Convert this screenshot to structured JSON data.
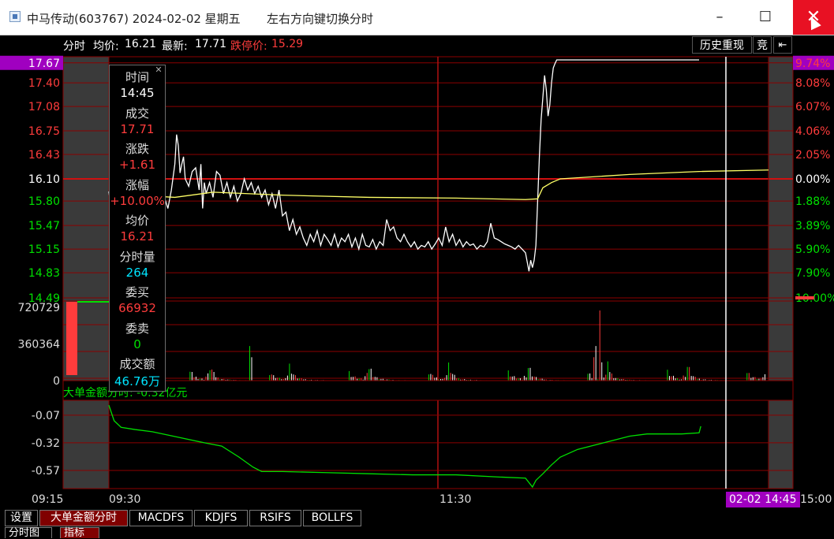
{
  "window": {
    "title": "中马传动(603767) 2024-02-02 星期五",
    "hint": "左右方向键切换分时",
    "minimize_glyph": "–",
    "maximize_glyph": "☐",
    "close_glyph": "✕"
  },
  "info_bar": {
    "mode": "分时",
    "avg_label": "均价:",
    "avg_value": "16.21",
    "latest_label": "最新:",
    "latest_value": "17.71",
    "limit_label": "跌停价:",
    "limit_value": "15.29",
    "history_button": "历史重现",
    "auction_button": "竞",
    "back_glyph": "⇤"
  },
  "tooltip": {
    "close_glyph": "✕",
    "rows": [
      {
        "label": "时间",
        "value": "14:45",
        "color": "#ffffff"
      },
      {
        "label": "成交",
        "value": "17.71",
        "color": "#ff3c3c"
      },
      {
        "label": "涨跌",
        "value": "+1.61",
        "color": "#ff3c3c"
      },
      {
        "label": "涨幅",
        "value": "+10.00%",
        "color": "#ff3c3c"
      },
      {
        "label": "均价",
        "value": "16.21",
        "color": "#ff3c3c"
      },
      {
        "label": "分时量",
        "value": "264",
        "color": "#00e5ff"
      },
      {
        "label": "委买",
        "value": "66932",
        "color": "#ff3c3c"
      },
      {
        "label": "委卖",
        "value": "0",
        "color": "#00e000"
      },
      {
        "label": "成交额",
        "value": "46.76万",
        "color": "#00e5ff"
      }
    ]
  },
  "chart_data": [
    {
      "type": "line",
      "name": "price",
      "y_ticks": [
        "17.67",
        "17.40",
        "17.08",
        "16.75",
        "16.43",
        "16.10",
        "15.80",
        "15.47",
        "15.15",
        "14.83",
        "14.49"
      ],
      "y_ticks_values": [
        17.67,
        17.4,
        17.08,
        16.75,
        16.43,
        16.1,
        15.8,
        15.47,
        15.15,
        14.83,
        14.49
      ],
      "pct_ticks": [
        "9.74%",
        "8.08%",
        "6.07%",
        "4.06%",
        "2.05%",
        "0.00%",
        "1.88%",
        "3.89%",
        "5.90%",
        "7.90%",
        "10.00%"
      ],
      "ylim": [
        14.49,
        17.71
      ],
      "prev_close": 16.1,
      "x_ticks": [
        "09:15",
        "09:30",
        "11:30",
        "02-02 14:45",
        "15:00"
      ],
      "series": [
        {
          "name": "price",
          "color": "#ffffff",
          "points": [
            [
              0,
              15.93
            ],
            [
              4,
              15.55
            ],
            [
              8,
              15.4
            ],
            [
              12,
              15.3
            ],
            [
              16,
              15.45
            ],
            [
              20,
              15.2
            ],
            [
              24,
              15.38
            ],
            [
              28,
              15.6
            ],
            [
              32,
              15.28
            ],
            [
              36,
              15.65
            ],
            [
              40,
              15.5
            ],
            [
              44,
              15.62
            ],
            [
              48,
              15.55
            ],
            [
              52,
              15.78
            ],
            [
              56,
              15.7
            ],
            [
              60,
              15.9
            ],
            [
              64,
              15.85
            ],
            [
              68,
              15.7
            ],
            [
              72,
              15.95
            ],
            [
              76,
              16.3
            ],
            [
              78,
              16.7
            ],
            [
              80,
              16.55
            ],
            [
              82,
              16.18
            ],
            [
              84,
              16.3
            ],
            [
              86,
              16.4
            ],
            [
              88,
              16.1
            ],
            [
              92,
              16.0
            ],
            [
              96,
              16.2
            ],
            [
              100,
              16.25
            ],
            [
              104,
              15.95
            ],
            [
              106,
              16.3
            ],
            [
              108,
              15.7
            ],
            [
              110,
              16.05
            ],
            [
              112,
              15.9
            ],
            [
              116,
              16.05
            ],
            [
              120,
              15.85
            ],
            [
              124,
              16.2
            ],
            [
              128,
              16.15
            ],
            [
              132,
              15.9
            ],
            [
              136,
              16.05
            ],
            [
              140,
              15.85
            ],
            [
              144,
              16.0
            ],
            [
              148,
              15.8
            ],
            [
              152,
              15.9
            ],
            [
              156,
              16.1
            ],
            [
              160,
              15.95
            ],
            [
              164,
              16.05
            ],
            [
              168,
              15.9
            ],
            [
              172,
              16.0
            ],
            [
              176,
              15.85
            ],
            [
              180,
              15.95
            ],
            [
              184,
              15.75
            ],
            [
              188,
              15.9
            ],
            [
              192,
              15.7
            ],
            [
              196,
              15.95
            ],
            [
              200,
              15.6
            ],
            [
              204,
              15.65
            ],
            [
              208,
              15.4
            ],
            [
              212,
              15.55
            ],
            [
              216,
              15.35
            ],
            [
              220,
              15.45
            ],
            [
              224,
              15.3
            ],
            [
              228,
              15.2
            ],
            [
              232,
              15.35
            ],
            [
              236,
              15.25
            ],
            [
              240,
              15.4
            ],
            [
              244,
              15.2
            ],
            [
              248,
              15.35
            ],
            [
              252,
              15.28
            ],
            [
              256,
              15.2
            ],
            [
              260,
              15.35
            ],
            [
              264,
              15.18
            ],
            [
              268,
              15.3
            ],
            [
              272,
              15.25
            ],
            [
              276,
              15.35
            ],
            [
              280,
              15.18
            ],
            [
              284,
              15.3
            ],
            [
              288,
              15.15
            ],
            [
              292,
              15.35
            ],
            [
              296,
              15.2
            ],
            [
              300,
              15.18
            ],
            [
              304,
              15.28
            ],
            [
              308,
              15.15
            ],
            [
              312,
              15.25
            ],
            [
              316,
              15.2
            ],
            [
              320,
              15.55
            ],
            [
              324,
              15.4
            ],
            [
              328,
              15.45
            ],
            [
              332,
              15.3
            ],
            [
              336,
              15.25
            ],
            [
              340,
              15.35
            ],
            [
              344,
              15.25
            ],
            [
              348,
              15.18
            ],
            [
              352,
              15.25
            ],
            [
              356,
              15.15
            ],
            [
              360,
              15.2
            ],
            [
              364,
              15.18
            ],
            [
              368,
              15.25
            ],
            [
              372,
              15.15
            ],
            [
              376,
              15.22
            ],
            [
              380,
              15.3
            ],
            [
              384,
              15.2
            ],
            [
              388,
              15.45
            ],
            [
              392,
              15.25
            ],
            [
              396,
              15.35
            ],
            [
              400,
              15.2
            ],
            [
              404,
              15.28
            ],
            [
              408,
              15.18
            ],
            [
              412,
              15.25
            ],
            [
              416,
              15.2
            ],
            [
              420,
              15.22
            ],
            [
              424,
              15.15
            ],
            [
              428,
              15.2
            ],
            [
              432,
              15.18
            ],
            [
              436,
              15.25
            ],
            [
              440,
              15.5
            ],
            [
              444,
              15.3
            ],
            [
              448,
              15.28
            ],
            [
              452,
              15.25
            ],
            [
              456,
              15.22
            ],
            [
              460,
              15.2
            ],
            [
              464,
              15.18
            ],
            [
              468,
              15.15
            ],
            [
              472,
              15.2
            ],
            [
              476,
              15.15
            ],
            [
              480,
              15.1
            ],
            [
              484,
              14.85
            ],
            [
              486,
              15.0
            ],
            [
              488,
              14.9
            ],
            [
              490,
              15.0
            ],
            [
              492,
              15.2
            ],
            [
              494,
              15.8
            ],
            [
              496,
              16.4
            ],
            [
              498,
              16.9
            ],
            [
              500,
              17.2
            ],
            [
              502,
              17.5
            ],
            [
              504,
              17.3
            ],
            [
              506,
              16.95
            ],
            [
              508,
              17.1
            ],
            [
              510,
              17.4
            ],
            [
              512,
              17.6
            ],
            [
              514,
              17.66
            ],
            [
              516,
              17.71
            ],
            [
              560,
              17.71
            ],
            [
              600,
              17.71
            ],
            [
              640,
              17.71
            ],
            [
              680,
              17.71
            ]
          ]
        },
        {
          "name": "avg",
          "color": "#ffff66",
          "points": [
            [
              0,
              15.9
            ],
            [
              76,
              15.85
            ],
            [
              120,
              15.92
            ],
            [
              200,
              15.88
            ],
            [
              300,
              15.85
            ],
            [
              400,
              15.84
            ],
            [
              480,
              15.82
            ],
            [
              494,
              15.83
            ],
            [
              500,
              15.98
            ],
            [
              510,
              16.05
            ],
            [
              520,
              16.1
            ],
            [
              600,
              16.16
            ],
            [
              680,
              16.2
            ],
            [
              760,
              16.22
            ]
          ]
        }
      ],
      "x_domain": [
        0,
        760
      ]
    },
    {
      "type": "bar",
      "name": "volume",
      "y_ticks": [
        "720729",
        "360364",
        "0"
      ],
      "ylim": [
        0,
        720729
      ],
      "values_sample": [
        120000,
        90000,
        60000,
        50000,
        40000,
        30000,
        25000,
        20000,
        60000,
        80000,
        200000,
        150000,
        90000,
        60000,
        40000,
        30000,
        25000,
        20000,
        18000,
        15000,
        12000,
        10000,
        9000,
        8000,
        7000,
        6500,
        6000,
        5500,
        5000,
        4800,
        4500,
        4200,
        4000,
        3800,
        3600,
        3400,
        3200,
        3000,
        3000,
        3000
      ],
      "spike_values": [
        230000,
        340000,
        180000,
        690000,
        90000
      ]
    },
    {
      "type": "line",
      "name": "big_order_net",
      "label": "大单金额分时: -0.32亿元",
      "y_ticks": [
        "-0.07",
        "-0.32",
        "-0.57"
      ],
      "ylim": [
        -0.72,
        0.05
      ],
      "series": [
        {
          "name": "big_order_net",
          "color": "#00e000",
          "points": [
            [
              0,
              0.02
            ],
            [
              6,
              -0.12
            ],
            [
              14,
              -0.18
            ],
            [
              30,
              -0.2
            ],
            [
              50,
              -0.22
            ],
            [
              80,
              -0.27
            ],
            [
              110,
              -0.32
            ],
            [
              130,
              -0.35
            ],
            [
              150,
              -0.45
            ],
            [
              166,
              -0.54
            ],
            [
              176,
              -0.58
            ],
            [
              200,
              -0.58
            ],
            [
              250,
              -0.59
            ],
            [
              300,
              -0.6
            ],
            [
              350,
              -0.61
            ],
            [
              400,
              -0.61
            ],
            [
              450,
              -0.63
            ],
            [
              480,
              -0.64
            ],
            [
              488,
              -0.72
            ],
            [
              492,
              -0.66
            ],
            [
              500,
              -0.6
            ],
            [
              510,
              -0.52
            ],
            [
              520,
              -0.45
            ],
            [
              540,
              -0.38
            ],
            [
              560,
              -0.34
            ],
            [
              580,
              -0.3
            ],
            [
              600,
              -0.26
            ],
            [
              620,
              -0.24
            ],
            [
              640,
              -0.24
            ],
            [
              660,
              -0.24
            ],
            [
              680,
              -0.23
            ],
            [
              682,
              -0.17
            ]
          ]
        }
      ]
    }
  ],
  "tabs": [
    {
      "label": "设置",
      "active": false
    },
    {
      "label": "大单金额分时",
      "active": true
    },
    {
      "label": "MACDFS",
      "active": false
    },
    {
      "label": "KDJFS",
      "active": false
    },
    {
      "label": "RSIFS",
      "active": false
    },
    {
      "label": "BOLLFS",
      "active": false
    }
  ],
  "tabs2": [
    {
      "label": "分时图",
      "active": false
    },
    {
      "label": "指标",
      "active": true
    }
  ],
  "colors": {
    "grid": "#8b0000",
    "price_up": "#ff3c3c",
    "price_down": "#00e000",
    "axis_text_left": "#dddddd",
    "highlight": "#a000c0"
  }
}
